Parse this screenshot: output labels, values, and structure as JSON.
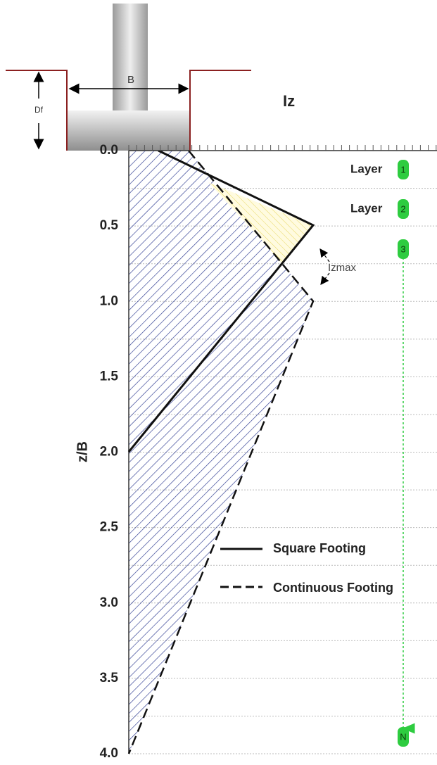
{
  "diagram": {
    "footing_width_label": "B",
    "embedment_label": "Df",
    "x_axis_label": "Iz",
    "y_axis_label": "z/B",
    "y_ticks": [
      "0.0",
      "0.5",
      "1.0",
      "1.5",
      "2.0",
      "2.5",
      "3.0",
      "3.5",
      "4.0"
    ],
    "layers": [
      {
        "label": "Layer",
        "number": "1"
      },
      {
        "label": "Layer",
        "number": "2"
      },
      {
        "number": "3"
      },
      {
        "number": "N"
      }
    ],
    "annotation": "Izmax",
    "legend": [
      "Square Footing",
      "Continuous Footing"
    ]
  }
}
